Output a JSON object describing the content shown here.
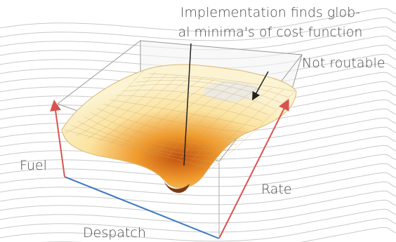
{
  "annotation": {
    "line1": "Implementation finds glob-",
    "line2": "al minima's of cost function"
  },
  "region_label": "Not routable",
  "axes": {
    "left": "Fuel",
    "right": "Rate",
    "front": "Despatch"
  }
}
